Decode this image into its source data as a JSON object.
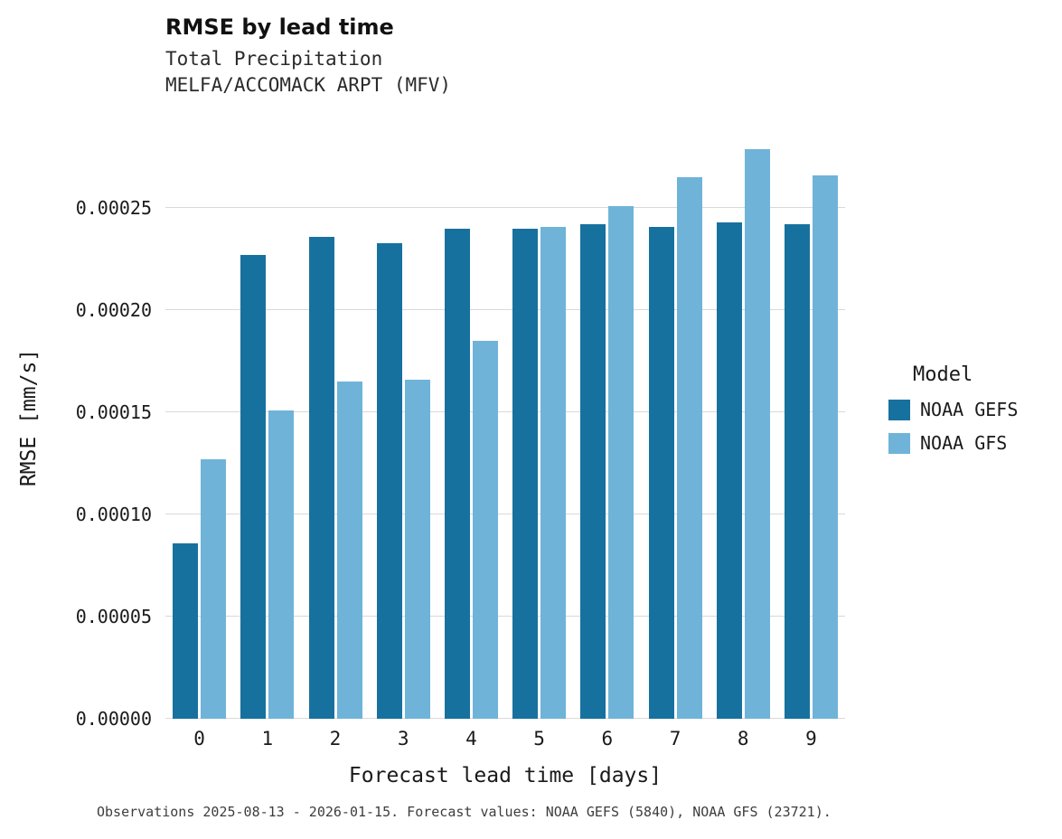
{
  "chart_data": {
    "type": "bar",
    "title": "RMSE by lead time",
    "subtitle1": "Total Precipitation",
    "subtitle2": "MELFA/ACCOMACK ARPT (MFV)",
    "xlabel": "Forecast lead time [days]",
    "ylabel": "RMSE [mm/s]",
    "categories": [
      "0",
      "1",
      "2",
      "3",
      "4",
      "5",
      "6",
      "7",
      "8",
      "9"
    ],
    "series": [
      {
        "name": "NOAA GEFS",
        "color": "#17719f",
        "values": [
          8.6e-05,
          0.000227,
          0.000236,
          0.000233,
          0.00024,
          0.00024,
          0.000242,
          0.000241,
          0.000243,
          0.000242
        ]
      },
      {
        "name": "NOAA GFS",
        "color": "#6fb3d9",
        "values": [
          0.000127,
          0.000151,
          0.000165,
          0.000166,
          0.000185,
          0.000241,
          0.000251,
          0.000265,
          0.000279,
          0.000266
        ]
      }
    ],
    "ylim": [
      0,
      0.00029
    ],
    "yticks": [
      0,
      5e-05,
      0.0001,
      0.00015,
      0.0002,
      0.00025
    ],
    "ytick_labels": [
      "0.00000",
      "0.00005",
      "0.00010",
      "0.00015",
      "0.00020",
      "0.00025"
    ],
    "legend_title": "Model",
    "legend_position": "right",
    "grid": true,
    "caption": "Observations 2025-08-13 - 2026-01-15. Forecast values: NOAA GEFS (5840), NOAA GFS (23721)."
  }
}
